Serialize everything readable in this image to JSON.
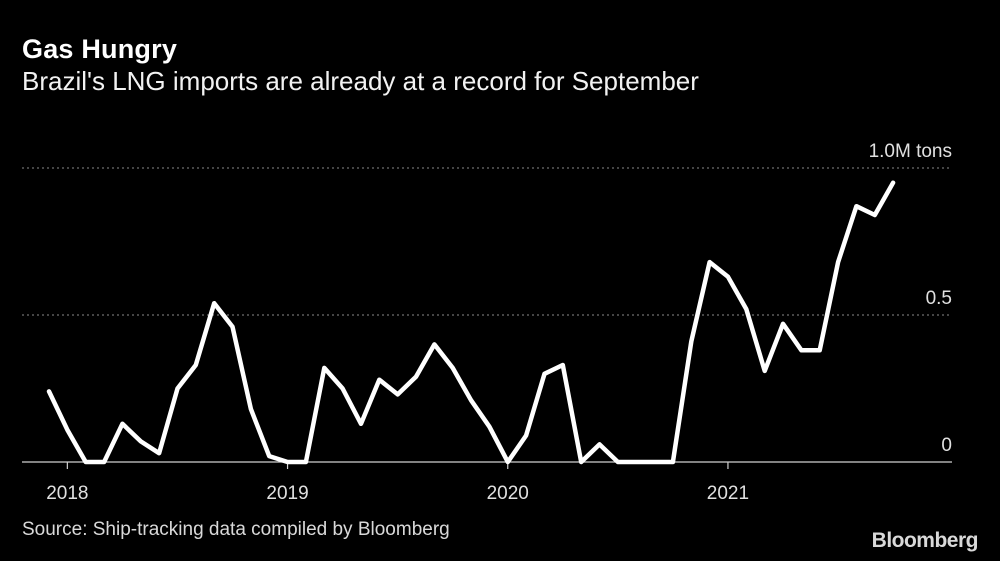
{
  "chart_data": {
    "type": "line",
    "title": "Gas Hungry",
    "subtitle": "Brazil's LNG imports are already at a record for September",
    "ylabel": "",
    "xlabel": "",
    "ylim": [
      0,
      1.0
    ],
    "y_ticks": [
      {
        "value": 0,
        "label": "0"
      },
      {
        "value": 0.5,
        "label": "0.5"
      },
      {
        "value": 1.0,
        "label": "1.0M tons"
      }
    ],
    "x_ticks": [
      {
        "value": 2018.0,
        "label": "2018"
      },
      {
        "value": 2019.0,
        "label": "2019"
      },
      {
        "value": 2020.0,
        "label": "2020"
      },
      {
        "value": 2021.0,
        "label": "2021"
      }
    ],
    "grid": true,
    "series": [
      {
        "name": "Brazil LNG imports",
        "start": "2017-12",
        "unit": "million tons",
        "values": [
          0.24,
          0.11,
          0.0,
          0.0,
          0.13,
          0.07,
          0.03,
          0.25,
          0.33,
          0.54,
          0.46,
          0.18,
          0.02,
          0.0,
          0.0,
          0.32,
          0.25,
          0.13,
          0.28,
          0.23,
          0.29,
          0.4,
          0.32,
          0.21,
          0.12,
          0.0,
          0.09,
          0.3,
          0.33,
          0.0,
          0.06,
          0.0,
          0.0,
          0.0,
          0.0,
          0.41,
          0.68,
          0.63,
          0.52,
          0.31,
          0.47,
          0.38,
          0.38,
          0.68,
          0.87,
          0.84,
          0.95
        ]
      }
    ],
    "source": "Source: Ship-tracking data compiled by Bloomberg",
    "brand": "Bloomberg"
  }
}
